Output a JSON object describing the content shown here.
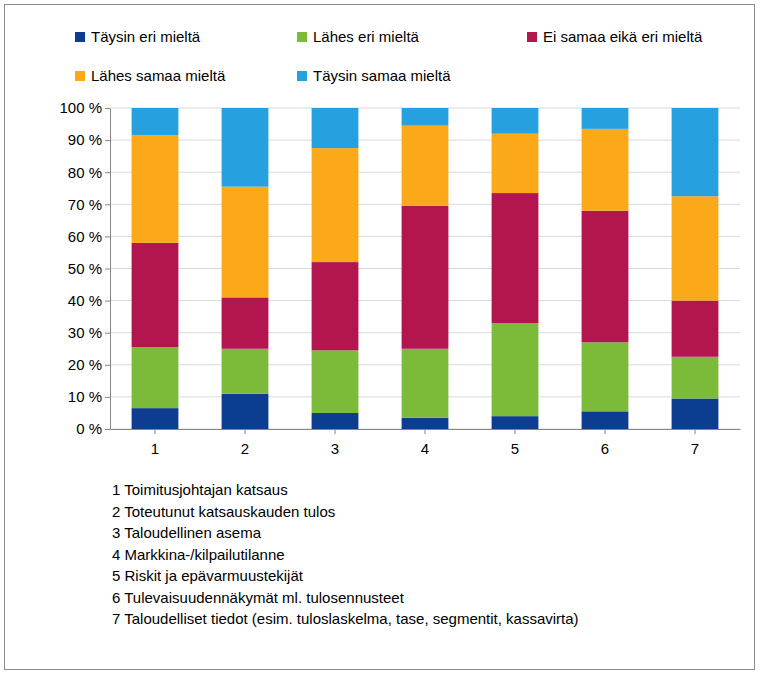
{
  "chart_data": {
    "type": "bar",
    "stacked": true,
    "grid": true,
    "legend": "top",
    "categories": [
      "1",
      "2",
      "3",
      "4",
      "5",
      "6",
      "7"
    ],
    "series": [
      {
        "name": "Täysin eri mieltä",
        "color": "#0d3d8e",
        "values": [
          6.5,
          11,
          5,
          3.5,
          4,
          5.5,
          9.5
        ]
      },
      {
        "name": "Lähes eri mieltä",
        "color": "#7cba3a",
        "values": [
          19,
          14,
          19.5,
          21.5,
          29,
          21.5,
          13
        ]
      },
      {
        "name": "Ei samaa eikä eri mieltä",
        "color": "#b3164e",
        "values": [
          32.5,
          16,
          27.5,
          44.5,
          40.5,
          41,
          17.5
        ]
      },
      {
        "name": "Lähes samaa mieltä",
        "color": "#fba919",
        "values": [
          33.5,
          34.5,
          35.5,
          25,
          18.5,
          25.5,
          32.5
        ]
      },
      {
        "name": "Täysin samaa mieltä",
        "color": "#27a0e0",
        "values": [
          8.5,
          24.5,
          12.5,
          5.5,
          8,
          6.5,
          27.5
        ]
      }
    ],
    "ylim": [
      0,
      100
    ],
    "yticks": [
      {
        "value": 0,
        "label": "0 %"
      },
      {
        "value": 10,
        "label": "10 %"
      },
      {
        "value": 20,
        "label": "20 %"
      },
      {
        "value": 30,
        "label": "30 %"
      },
      {
        "value": 40,
        "label": "40 %"
      },
      {
        "value": 50,
        "label": "50 %"
      },
      {
        "value": 60,
        "label": "60 %"
      },
      {
        "value": 70,
        "label": "70 %"
      },
      {
        "value": 80,
        "label": "80 %"
      },
      {
        "value": 90,
        "label": "90 %"
      },
      {
        "value": 100,
        "label": "100 %"
      }
    ],
    "annotations": [
      "1 Toimitusjohtajan katsaus",
      "2 Toteutunut katsauskauden tulos",
      "3 Taloudellinen asema",
      "4 Markkina-/kilpailutilanne",
      "5 Riskit ja epävarmuustekijät",
      "6 Tulevaisuudennäkymät ml. tulosennusteet",
      "7 Taloudelliset tiedot (esim. tuloslaskelma, tase, segmentit, kassavirta)"
    ]
  }
}
